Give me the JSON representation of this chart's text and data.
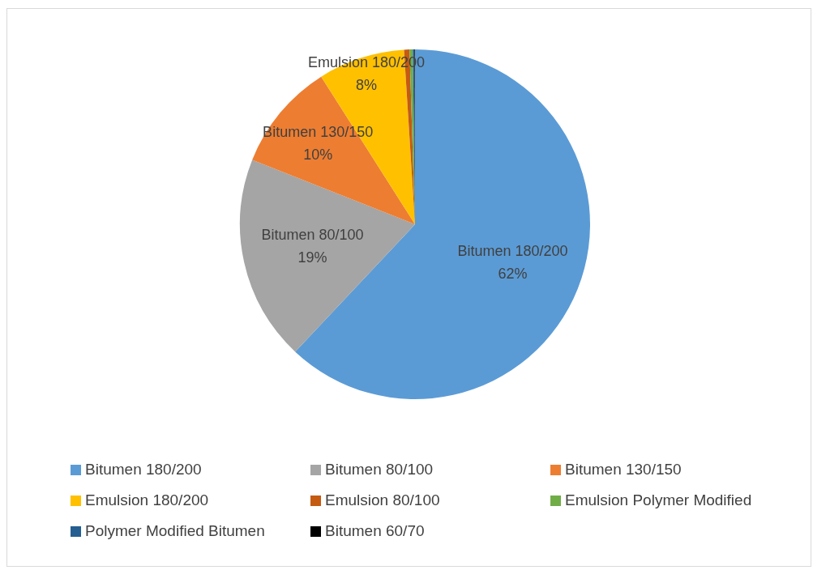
{
  "chart_data": {
    "type": "pie",
    "categories": [
      "Bitumen 180/200",
      "Bitumen 80/100",
      "Bitumen 130/150",
      "Emulsion 180/200",
      "Emulsion 80/100",
      "Emulsion Polymer Modified",
      "Polymer Modified Bitumen",
      "Bitumen 60/70"
    ],
    "values": [
      62,
      19,
      10,
      8,
      0.5,
      0.3,
      0.15,
      0.05
    ],
    "value_labels": [
      "62%",
      "19%",
      "10%",
      "8%",
      null,
      null,
      null,
      null
    ],
    "colors": [
      "#5b9bd5",
      "#a5a5a5",
      "#ed7d31",
      "#ffc000",
      "#c55a11",
      "#70ad47",
      "#255e91",
      "#000000"
    ],
    "legend": "bottom"
  }
}
